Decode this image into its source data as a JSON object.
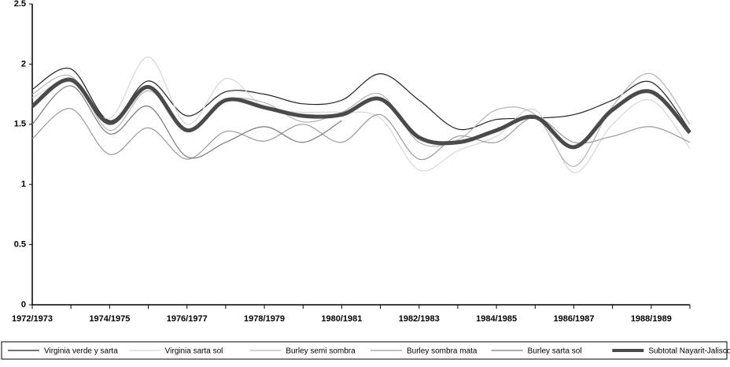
{
  "chart_data": {
    "type": "line",
    "categories": [
      "1972/1973",
      null,
      "1974/1975",
      null,
      "1976/1977",
      null,
      "1978/1979",
      null,
      "1980/1981",
      null,
      "1982/1983",
      null,
      "1984/1985",
      null,
      "1986/1987",
      null,
      "1988/1989",
      null
    ],
    "ylim": [
      0,
      2.5
    ],
    "yticks": [
      0,
      0.5,
      1,
      1.5,
      2,
      2.5
    ],
    "grid": false,
    "series": [
      {
        "name": "Virginia verde y sarta",
        "color": "#222222",
        "width": 1.2,
        "values": [
          1.79,
          1.96,
          1.53,
          1.86,
          1.57,
          1.77,
          1.75,
          1.67,
          1.7,
          1.92,
          1.7,
          1.46,
          1.54,
          1.55,
          1.58,
          1.7,
          1.85,
          1.45
        ]
      },
      {
        "name": "Virginia sarta sol",
        "color": "#d6d6d6",
        "width": 1.2,
        "values": [
          1.72,
          1.85,
          1.55,
          2.06,
          1.5,
          1.88,
          1.64,
          1.6,
          1.6,
          1.55,
          1.12,
          1.28,
          1.4,
          1.62,
          1.1,
          1.5,
          1.7,
          1.3
        ]
      },
      {
        "name": "Burley semi sombra",
        "color": "#b4b4b4",
        "width": 1.2,
        "values": [
          1.75,
          1.9,
          1.45,
          1.78,
          1.45,
          1.7,
          1.68,
          1.52,
          1.6,
          1.75,
          1.35,
          1.37,
          1.62,
          1.58,
          1.15,
          1.65,
          1.92,
          1.5
        ]
      },
      {
        "name": "Burley sombra mata",
        "color": "#9a9a9a",
        "width": 1.2,
        "values": [
          1.38,
          1.63,
          1.25,
          1.47,
          1.21,
          1.44,
          1.36,
          1.5,
          1.35,
          1.58,
          1.21,
          1.4,
          1.35,
          1.56,
          1.35,
          1.4,
          1.48,
          1.35
        ]
      },
      {
        "name": "Burley sarta sol",
        "color": "#7a7a7a",
        "width": 1.2,
        "values": [
          1.5,
          1.82,
          1.42,
          1.65,
          1.23,
          1.35,
          1.48,
          1.35,
          1.53,
          null,
          null,
          null,
          null,
          null,
          null,
          null,
          null,
          null
        ]
      },
      {
        "name": "Subtotal Nayarit-Jalisco",
        "color": "#4a4a4a",
        "width": 5,
        "values": [
          1.65,
          1.87,
          1.51,
          1.81,
          1.45,
          1.7,
          1.64,
          1.57,
          1.58,
          1.71,
          1.39,
          1.35,
          1.45,
          1.56,
          1.31,
          1.62,
          1.77,
          1.43
        ]
      }
    ]
  }
}
